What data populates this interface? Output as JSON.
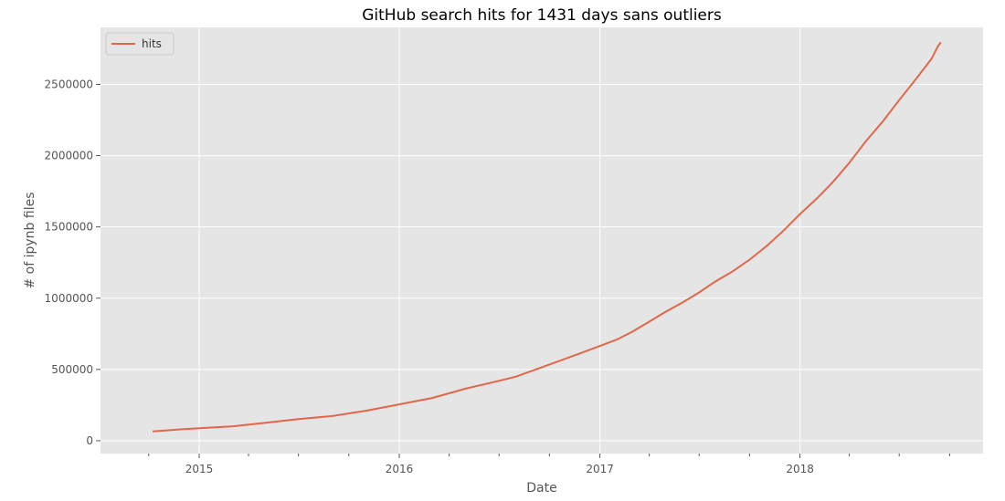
{
  "chart_data": {
    "type": "line",
    "title": "GitHub search hits for 1431 days sans outliers",
    "xlabel": "Date",
    "ylabel": "# of ipynb files",
    "style": "ggplot",
    "background_color": "#e5e5e5",
    "grid_color": "#ffffff",
    "grid": true,
    "legend": {
      "position": "top-left",
      "entries": [
        "hits"
      ]
    },
    "xlim": [
      "2014-07-05",
      "2018-12-01"
    ],
    "ylim": [
      -90000,
      2900000
    ],
    "x_ticks": [
      {
        "date": "2015-01-01",
        "label": "2015"
      },
      {
        "date": "2016-01-01",
        "label": "2016"
      },
      {
        "date": "2017-01-01",
        "label": "2017"
      },
      {
        "date": "2018-01-01",
        "label": "2018"
      }
    ],
    "y_ticks": [
      0,
      500000,
      1000000,
      1500000,
      2000000,
      2500000
    ],
    "series": [
      {
        "name": "hits",
        "color": "#e2674a",
        "points": [
          [
            "2014-10-08",
            65000
          ],
          [
            "2014-12-01",
            80000
          ],
          [
            "2015-01-01",
            88000
          ],
          [
            "2015-03-01",
            100000
          ],
          [
            "2015-05-01",
            125000
          ],
          [
            "2015-07-01",
            152000
          ],
          [
            "2015-09-01",
            173000
          ],
          [
            "2015-11-01",
            210000
          ],
          [
            "2016-01-01",
            255000
          ],
          [
            "2016-03-01",
            300000
          ],
          [
            "2016-05-01",
            365000
          ],
          [
            "2016-07-01",
            420000
          ],
          [
            "2016-08-01",
            450000
          ],
          [
            "2016-10-01",
            535000
          ],
          [
            "2016-12-01",
            620000
          ],
          [
            "2017-01-01",
            665000
          ],
          [
            "2017-02-01",
            710000
          ],
          [
            "2017-03-01",
            765000
          ],
          [
            "2017-04-01",
            835000
          ],
          [
            "2017-05-01",
            905000
          ],
          [
            "2017-06-01",
            970000
          ],
          [
            "2017-07-01",
            1040000
          ],
          [
            "2017-07-20",
            1090000
          ],
          [
            "2017-08-01",
            1120000
          ],
          [
            "2017-09-01",
            1190000
          ],
          [
            "2017-10-01",
            1270000
          ],
          [
            "2017-11-01",
            1365000
          ],
          [
            "2017-12-01",
            1470000
          ],
          [
            "2018-01-01",
            1590000
          ],
          [
            "2018-02-01",
            1700000
          ],
          [
            "2018-03-01",
            1810000
          ],
          [
            "2018-04-01",
            1950000
          ],
          [
            "2018-05-01",
            2100000
          ],
          [
            "2018-06-01",
            2240000
          ],
          [
            "2018-07-01",
            2390000
          ],
          [
            "2018-08-01",
            2540000
          ],
          [
            "2018-08-29",
            2680000
          ],
          [
            "2018-09-10",
            2770000
          ],
          [
            "2018-09-15",
            2795000
          ]
        ]
      }
    ]
  }
}
